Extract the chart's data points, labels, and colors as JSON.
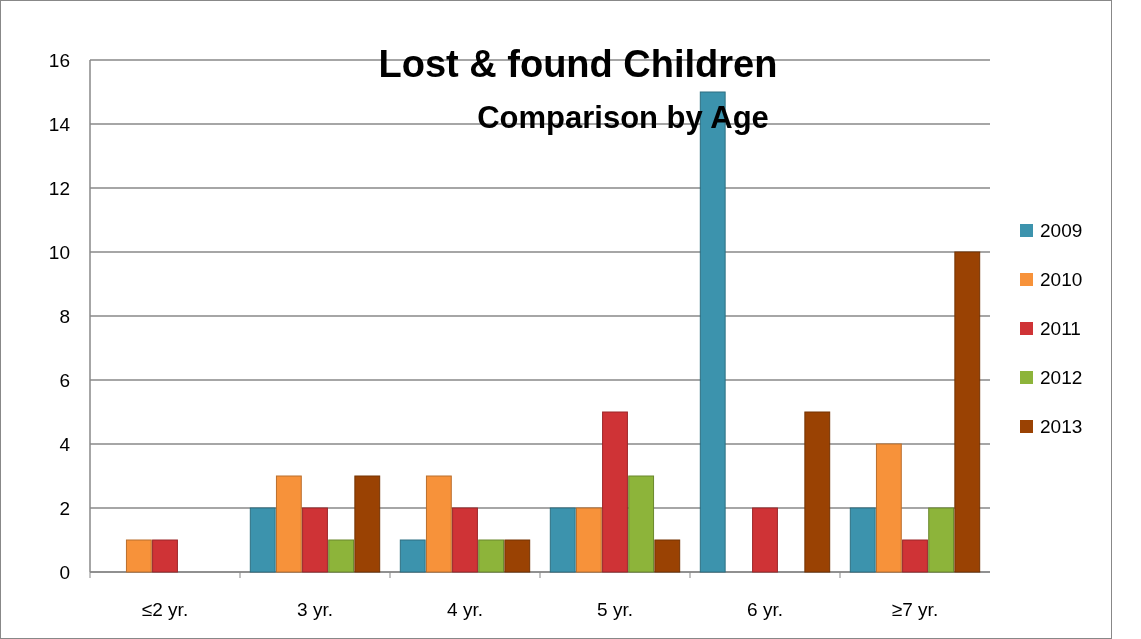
{
  "chart_data": {
    "type": "bar",
    "title": "Lost & found Children",
    "subtitle": "Comparison by Age",
    "categories": [
      "≤2 yr.",
      "3 yr.",
      "4 yr.",
      "5 yr.",
      "6 yr.",
      "≥7 yr."
    ],
    "series": [
      {
        "name": "2009",
        "color": "#3c93ad",
        "values": [
          0,
          2,
          1,
          2,
          15,
          2
        ]
      },
      {
        "name": "2010",
        "color": "#f7923a",
        "values": [
          1,
          3,
          3,
          2,
          0,
          4
        ]
      },
      {
        "name": "2011",
        "color": "#cf3336",
        "values": [
          1,
          2,
          2,
          5,
          2,
          1
        ]
      },
      {
        "name": "2012",
        "color": "#8db43a",
        "values": [
          0,
          1,
          1,
          3,
          0,
          2
        ]
      },
      {
        "name": "2013",
        "color": "#9a4203",
        "values": [
          0,
          3,
          1,
          1,
          5,
          10
        ]
      }
    ],
    "ylim": [
      0,
      16
    ],
    "yticks": [
      0,
      2,
      4,
      6,
      8,
      10,
      12,
      14,
      16
    ],
    "grid": "y",
    "legend": "right"
  }
}
